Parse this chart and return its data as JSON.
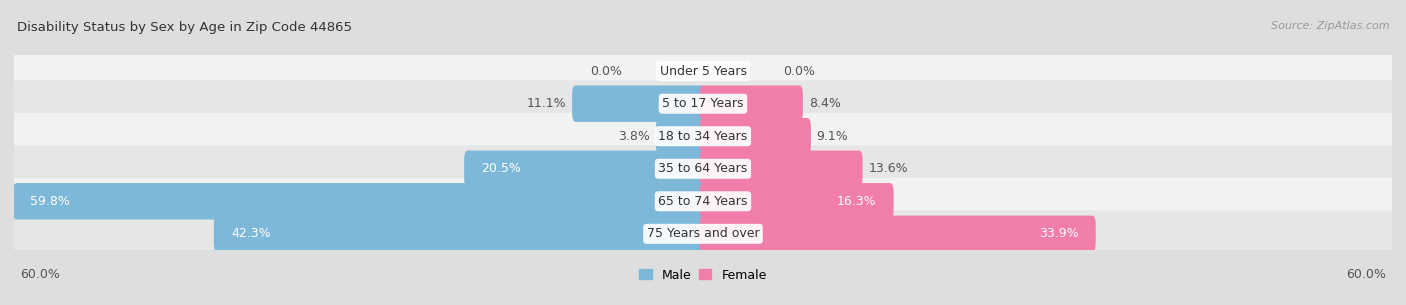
{
  "title": "Disability Status by Sex by Age in Zip Code 44865",
  "source": "Source: ZipAtlas.com",
  "categories": [
    "Under 5 Years",
    "5 to 17 Years",
    "18 to 34 Years",
    "35 to 64 Years",
    "65 to 74 Years",
    "75 Years and over"
  ],
  "male_values": [
    0.0,
    11.1,
    3.8,
    20.5,
    59.8,
    42.3
  ],
  "female_values": [
    0.0,
    8.4,
    9.1,
    13.6,
    16.3,
    33.9
  ],
  "male_color": "#7EB8D9",
  "female_color": "#F07DAA",
  "bg_color": "#DEDEDE",
  "row_color_light": "#F2F2F2",
  "row_color_dark": "#E6E6E6",
  "axis_max": 60.0,
  "label_fontsize": 9.0,
  "title_fontsize": 9.5,
  "source_fontsize": 8.0,
  "bar_height": 0.52,
  "legend_male": "Male",
  "legend_female": "Female"
}
